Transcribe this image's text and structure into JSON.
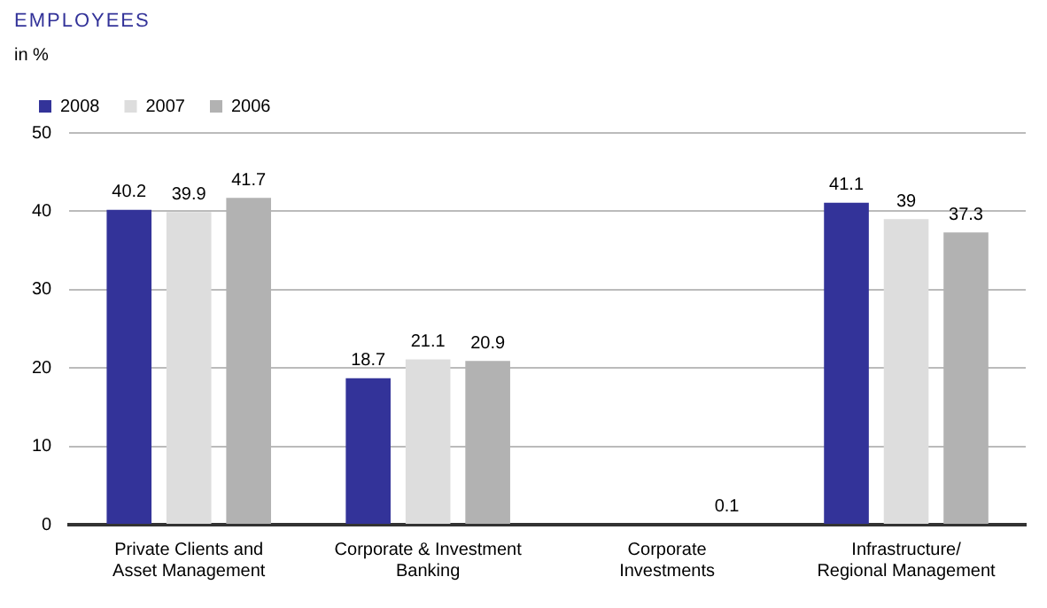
{
  "chart_data": {
    "type": "bar",
    "title": "EMPLOYEES",
    "ylabel": "in %",
    "categories": [
      "Private Clients and\nAsset Management",
      "Corporate & Investment\nBanking",
      "Corporate\nInvestments",
      "Infrastructure/\nRegional Management"
    ],
    "series": [
      {
        "name": "2008",
        "color": "#333399",
        "values": [
          40.2,
          18.7,
          null,
          41.1
        ]
      },
      {
        "name": "2007",
        "color": "#dddddd",
        "values": [
          39.9,
          21.1,
          null,
          39
        ]
      },
      {
        "name": "2006",
        "color": "#b2b2b2",
        "values": [
          41.7,
          20.9,
          0.1,
          37.3
        ]
      }
    ],
    "ylim": [
      0,
      50
    ],
    "yticks": [
      0,
      10,
      20,
      30,
      40,
      50
    ],
    "grid": "y",
    "legend": "top left",
    "data_labels": true
  }
}
